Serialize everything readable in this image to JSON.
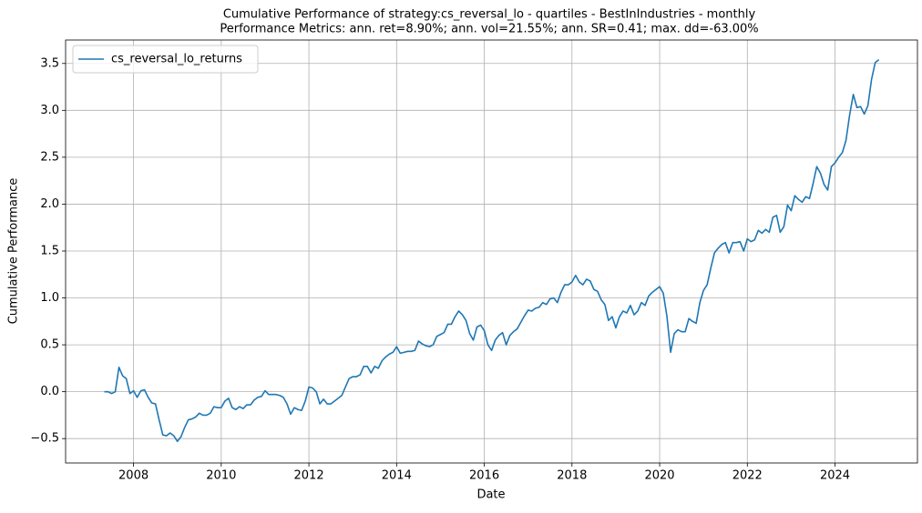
{
  "chart_data": {
    "type": "line",
    "title": "Cumulative Performance of strategy:cs_reversal_lo - quartiles - BestInIndustries - monthly",
    "subtitle": "Performance Metrics: ann. ret=8.90%; ann. vol=21.55%; ann. SR=0.41; max. dd=-63.00%",
    "x_label": "Date",
    "y_label": "Cumulative Performance",
    "x": [
      2007.333,
      2007.417,
      2007.5,
      2007.583,
      2007.667,
      2007.75,
      2007.833,
      2007.917,
      2008,
      2008.083,
      2008.167,
      2008.25,
      2008.333,
      2008.417,
      2008.5,
      2008.583,
      2008.667,
      2008.75,
      2008.833,
      2008.917,
      2009,
      2009.083,
      2009.167,
      2009.25,
      2009.333,
      2009.417,
      2009.5,
      2009.583,
      2009.667,
      2009.75,
      2009.833,
      2009.917,
      2010,
      2010.083,
      2010.167,
      2010.25,
      2010.333,
      2010.417,
      2010.5,
      2010.583,
      2010.667,
      2010.75,
      2010.833,
      2010.917,
      2011,
      2011.083,
      2011.167,
      2011.25,
      2011.333,
      2011.417,
      2011.5,
      2011.583,
      2011.667,
      2011.75,
      2011.833,
      2011.917,
      2012,
      2012.083,
      2012.167,
      2012.25,
      2012.333,
      2012.417,
      2012.5,
      2012.583,
      2012.667,
      2012.75,
      2012.833,
      2012.917,
      2013,
      2013.083,
      2013.167,
      2013.25,
      2013.333,
      2013.417,
      2013.5,
      2013.583,
      2013.667,
      2013.75,
      2013.833,
      2013.917,
      2014,
      2014.083,
      2014.167,
      2014.25,
      2014.333,
      2014.417,
      2014.5,
      2014.583,
      2014.667,
      2014.75,
      2014.833,
      2014.917,
      2015,
      2015.083,
      2015.167,
      2015.25,
      2015.333,
      2015.417,
      2015.5,
      2015.583,
      2015.667,
      2015.75,
      2015.833,
      2015.917,
      2016,
      2016.083,
      2016.167,
      2016.25,
      2016.333,
      2016.417,
      2016.5,
      2016.583,
      2016.667,
      2016.75,
      2016.833,
      2016.917,
      2017,
      2017.083,
      2017.167,
      2017.25,
      2017.333,
      2017.417,
      2017.5,
      2017.583,
      2017.667,
      2017.75,
      2017.833,
      2017.917,
      2018,
      2018.083,
      2018.167,
      2018.25,
      2018.333,
      2018.417,
      2018.5,
      2018.583,
      2018.667,
      2018.75,
      2018.833,
      2018.917,
      2019,
      2019.083,
      2019.167,
      2019.25,
      2019.333,
      2019.417,
      2019.5,
      2019.583,
      2019.667,
      2019.75,
      2019.833,
      2019.917,
      2020,
      2020.083,
      2020.167,
      2020.25,
      2020.333,
      2020.417,
      2020.5,
      2020.583,
      2020.667,
      2020.75,
      2020.833,
      2020.917,
      2021,
      2021.083,
      2021.167,
      2021.25,
      2021.333,
      2021.417,
      2021.5,
      2021.583,
      2021.667,
      2021.75,
      2021.833,
      2021.917,
      2022,
      2022.083,
      2022.167,
      2022.25,
      2022.333,
      2022.417,
      2022.5,
      2022.583,
      2022.667,
      2022.75,
      2022.833,
      2022.917,
      2023,
      2023.083,
      2023.167,
      2023.25,
      2023.333,
      2023.417,
      2023.5,
      2023.583,
      2023.667,
      2023.75,
      2023.833,
      2023.917,
      2024,
      2024.083,
      2024.167,
      2024.25,
      2024.333,
      2024.417,
      2024.5,
      2024.583,
      2024.667,
      2024.75,
      2024.833,
      2024.917,
      2025
    ],
    "series": [
      {
        "name": "cs_reversal_lo_returns",
        "color": "#1f77b4",
        "values": [
          0.0,
          0.0,
          -0.02,
          0.0,
          0.26,
          0.17,
          0.14,
          -0.02,
          0.01,
          -0.06,
          0.01,
          0.02,
          -0.06,
          -0.12,
          -0.13,
          -0.3,
          -0.46,
          -0.47,
          -0.44,
          -0.47,
          -0.53,
          -0.48,
          -0.38,
          -0.3,
          -0.29,
          -0.27,
          -0.23,
          -0.25,
          -0.25,
          -0.23,
          -0.16,
          -0.17,
          -0.17,
          -0.1,
          -0.07,
          -0.17,
          -0.19,
          -0.16,
          -0.18,
          -0.14,
          -0.14,
          -0.09,
          -0.06,
          -0.05,
          0.01,
          -0.03,
          -0.03,
          -0.03,
          -0.04,
          -0.06,
          -0.13,
          -0.24,
          -0.17,
          -0.19,
          -0.2,
          -0.1,
          0.05,
          0.04,
          0.0,
          -0.13,
          -0.08,
          -0.13,
          -0.13,
          -0.1,
          -0.07,
          -0.04,
          0.05,
          0.14,
          0.16,
          0.16,
          0.18,
          0.27,
          0.27,
          0.2,
          0.27,
          0.25,
          0.33,
          0.37,
          0.4,
          0.42,
          0.48,
          0.41,
          0.42,
          0.43,
          0.43,
          0.44,
          0.54,
          0.51,
          0.49,
          0.48,
          0.5,
          0.59,
          0.61,
          0.63,
          0.72,
          0.72,
          0.8,
          0.86,
          0.82,
          0.76,
          0.62,
          0.55,
          0.69,
          0.71,
          0.65,
          0.5,
          0.44,
          0.55,
          0.6,
          0.63,
          0.5,
          0.6,
          0.64,
          0.67,
          0.74,
          0.81,
          0.87,
          0.86,
          0.89,
          0.9,
          0.95,
          0.93,
          0.99,
          1.0,
          0.95,
          1.06,
          1.14,
          1.14,
          1.17,
          1.24,
          1.17,
          1.14,
          1.2,
          1.18,
          1.09,
          1.07,
          0.98,
          0.93,
          0.76,
          0.8,
          0.68,
          0.8,
          0.86,
          0.84,
          0.92,
          0.82,
          0.86,
          0.95,
          0.92,
          1.02,
          1.06,
          1.09,
          1.12,
          1.05,
          0.8,
          0.42,
          0.62,
          0.66,
          0.64,
          0.64,
          0.78,
          0.75,
          0.73,
          0.95,
          1.08,
          1.14,
          1.32,
          1.48,
          1.53,
          1.57,
          1.59,
          1.48,
          1.59,
          1.59,
          1.6,
          1.5,
          1.63,
          1.6,
          1.62,
          1.72,
          1.69,
          1.73,
          1.7,
          1.86,
          1.88,
          1.7,
          1.76,
          1.99,
          1.93,
          2.09,
          2.05,
          2.02,
          2.08,
          2.06,
          2.22,
          2.4,
          2.33,
          2.21,
          2.15,
          2.4,
          2.44,
          2.5,
          2.55,
          2.68,
          2.95,
          3.17,
          3.03,
          3.04,
          2.96,
          3.05,
          3.33,
          3.51,
          3.54
        ]
      }
    ],
    "xlim": [
      2006.45,
      2025.88
    ],
    "xticks": [
      2008,
      2010,
      2012,
      2014,
      2016,
      2018,
      2020,
      2022,
      2024
    ],
    "ylim": [
      -0.76,
      3.75
    ],
    "yticks": [
      {
        "value": -0.5,
        "label": "−0.5"
      },
      {
        "value": 0,
        "label": "0.0"
      },
      0.5,
      {
        "value": 1,
        "label": "1.0"
      },
      1.5,
      {
        "value": 2,
        "label": "2.0"
      },
      2.5,
      {
        "value": 3,
        "label": "3.0"
      },
      3.5
    ],
    "grid": true,
    "legend": "upper left"
  }
}
